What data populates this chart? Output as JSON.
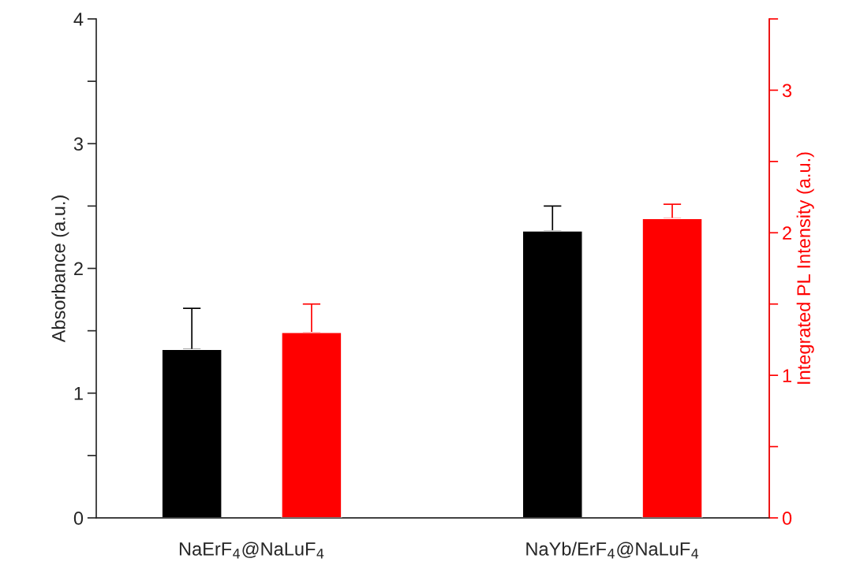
{
  "chart_data": {
    "type": "bar",
    "categories": [
      "NaErF$_{4}$@NaLuF$_{4}$",
      "NaYb/ErF$_{4}$@NaLuF$_{4}$"
    ],
    "series": [
      {
        "color": "#000000",
        "values": [
          1.35,
          2.3
        ],
        "errors": [
          [
            1.35,
            1.68
          ],
          [
            2.3,
            2.5
          ]
        ]
      },
      {
        "color": "#ff0000",
        "values": [
          1.3,
          2.1
        ],
        "errors": [
          [
            1.3,
            1.5
          ],
          [
            2.1,
            2.2
          ]
        ],
        "axis": "y2"
      }
    ],
    "ylabel": "Absorbance (a.u.)",
    "y2label": "Integrated PL Intensity (a.u.)",
    "ylim": [
      0,
      4
    ],
    "yticks": [
      0,
      {
        "value": 0.5,
        "label": null
      },
      1,
      {
        "value": 1.5,
        "label": null
      },
      2,
      {
        "value": 2.5,
        "label": null
      },
      3,
      {
        "value": 3.5,
        "label": null
      },
      4
    ],
    "y2lim": [
      0,
      3.5
    ],
    "y2ticks": [
      0,
      {
        "value": 0.5,
        "label": null
      },
      1,
      {
        "value": 1.5,
        "label": null
      },
      2,
      {
        "value": 2.5,
        "label": null
      },
      3,
      {
        "value": 3.5,
        "label": null
      }
    ],
    "grid": false,
    "legend": false
  }
}
